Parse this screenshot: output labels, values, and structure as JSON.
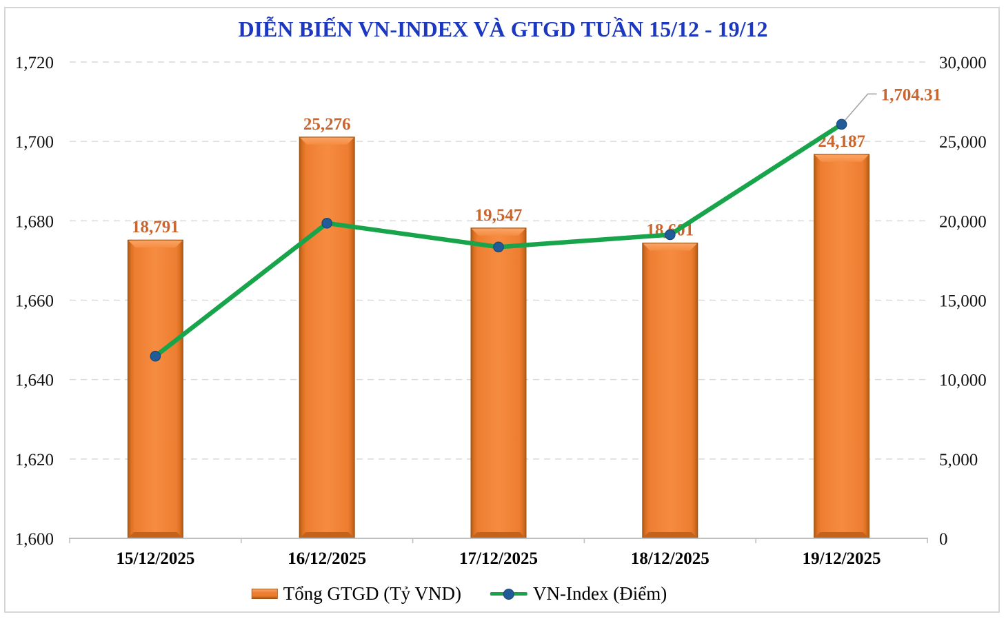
{
  "title": "DIỄN BIẾN VN-INDEX VÀ GTGD TUẦN 15/12 - 19/12",
  "colors": {
    "title_blue": "#1C38C0",
    "bar_fill": "#ED7D31",
    "bar_fill_light": "#F68C41",
    "bar_edge_dark": "#B05A15",
    "bar_bevel_highlight": "#F9A365",
    "bar_bevel_shadow": "#C4611B",
    "bar_outline": "#9A5314",
    "line_green": "#17A44A",
    "marker_blue": "#215C98",
    "marker_outline": "#17477A",
    "data_label_orange": "#C9662F",
    "gridline_gray": "#D9D9D9",
    "axis_gray": "#BFBFBF",
    "leader_gray": "#A6A6A6",
    "text_black": "#111111",
    "frame_gray": "#D6D6D6"
  },
  "chart_data": {
    "type": "combo",
    "title": "DIỄN BIẾN VN-INDEX VÀ GTGD TUẦN 15/12 - 19/12",
    "categories": [
      "15/12/2025",
      "16/12/2025",
      "17/12/2025",
      "18/12/2025",
      "19/12/2025"
    ],
    "series": [
      {
        "name": "Tổng GTGD (Tỷ VND)",
        "type": "bar",
        "axis": "right",
        "values": [
          18791,
          25276,
          19547,
          18601,
          24187
        ],
        "data_labels": [
          "18,791",
          "25,276",
          "19,547",
          "18,601",
          "24,187"
        ]
      },
      {
        "name": "VN-Index (Điểm)",
        "type": "line",
        "axis": "left",
        "values": [
          1645.9,
          1679.4,
          1673.4,
          1676.5,
          1704.31
        ],
        "data_labels": [
          "",
          "",
          "",
          "",
          "1,704.31"
        ]
      }
    ],
    "left_axis": {
      "min": 1600,
      "max": 1720,
      "step": 20,
      "tick_labels": [
        "1,600",
        "1,620",
        "1,640",
        "1,660",
        "1,680",
        "1,700",
        "1,720"
      ]
    },
    "right_axis": {
      "min": 0,
      "max": 30000,
      "step": 5000,
      "tick_labels": [
        "0",
        "5,000",
        "10,000",
        "15,000",
        "20,000",
        "25,000",
        "30,000"
      ]
    },
    "grid": "horizontal-dashed",
    "legend_position": "bottom"
  },
  "legend": {
    "items": [
      {
        "label": "Tổng GTGD (Tỷ VND)",
        "swatch": "bar"
      },
      {
        "label": "VN-Index (Điểm)",
        "swatch": "line"
      }
    ]
  }
}
